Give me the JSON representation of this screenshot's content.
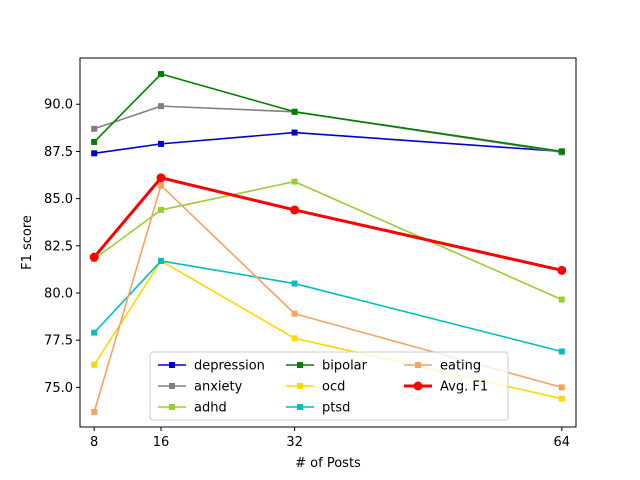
{
  "chart_data": {
    "type": "line",
    "title": "",
    "xlabel": "# of Posts",
    "ylabel": "F1 score",
    "x": [
      8,
      16,
      32,
      64
    ],
    "xticks": [
      "8",
      "16",
      "32",
      "64"
    ],
    "xlim": [
      6.3,
      65.7
    ],
    "yticks": [
      75.0,
      77.5,
      80.0,
      82.5,
      85.0,
      87.5,
      90.0
    ],
    "ytick_labels": [
      "75.0",
      "77.5",
      "80.0",
      "82.5",
      "85.0",
      "87.5",
      "90.0"
    ],
    "ylim": [
      72.9,
      92.45
    ],
    "grid": false,
    "legend": {
      "placement": "lower center",
      "columns": 3
    },
    "series": [
      {
        "name": "depression",
        "color": "#0000cc",
        "marker": "square",
        "values": [
          87.4,
          87.9,
          88.5,
          87.5
        ]
      },
      {
        "name": "anxiety",
        "color": "#808080",
        "marker": "square",
        "values": [
          88.7,
          89.9,
          89.6,
          87.45
        ]
      },
      {
        "name": "adhd",
        "color": "#9acd32",
        "marker": "square",
        "values": [
          81.8,
          84.4,
          85.9,
          79.65
        ]
      },
      {
        "name": "bipolar",
        "color": "#008000",
        "marker": "square",
        "values": [
          88.0,
          91.6,
          89.6,
          87.5
        ]
      },
      {
        "name": "ocd",
        "color": "#ffd700",
        "marker": "square",
        "values": [
          76.2,
          81.7,
          77.6,
          74.4
        ]
      },
      {
        "name": "ptsd",
        "color": "#00bfbf",
        "marker": "square",
        "values": [
          77.9,
          81.7,
          80.5,
          76.9
        ]
      },
      {
        "name": "eating",
        "color": "#f4a460",
        "marker": "square",
        "values": [
          73.7,
          85.7,
          78.9,
          75.0
        ]
      },
      {
        "name": "Avg. F1",
        "color": "#ff0000",
        "marker": "circle",
        "bold": true,
        "values": [
          81.9,
          86.1,
          84.4,
          81.2
        ]
      }
    ]
  }
}
